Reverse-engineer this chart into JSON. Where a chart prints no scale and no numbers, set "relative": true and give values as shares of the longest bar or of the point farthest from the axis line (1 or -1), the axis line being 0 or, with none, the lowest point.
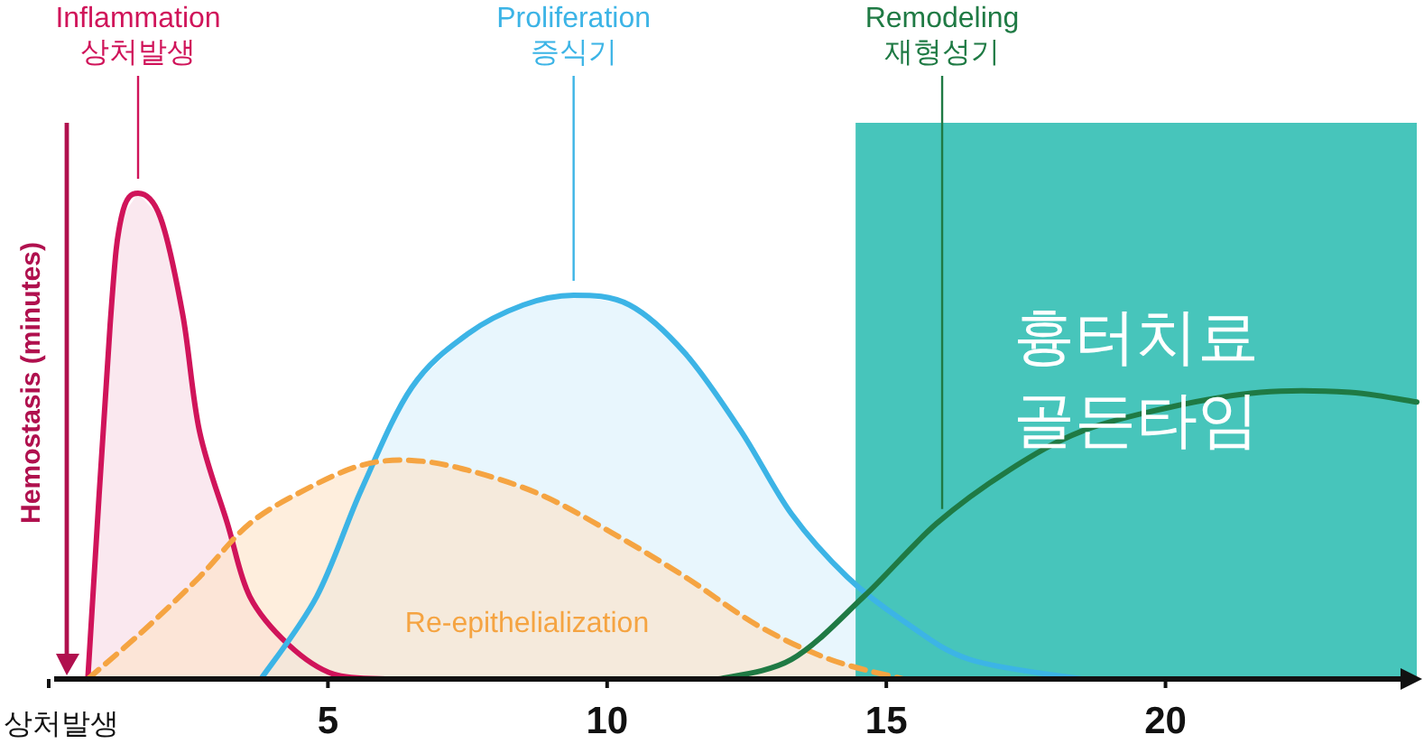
{
  "chart_data": {
    "type": "area",
    "relative": true,
    "ylabel": "Hemostasis (minutes)",
    "xlim": [
      0,
      24.5
    ],
    "xticks": [
      {
        "value": 0,
        "label": "상처발생"
      },
      5,
      10,
      15,
      20
    ],
    "series": [
      {
        "type": "area",
        "color": "#d0145a",
        "line_style": "solid",
        "x": [
          0.7,
          1.1,
          1.3,
          1.6,
          2.0,
          2.4,
          2.7,
          3.2,
          3.6,
          4.3,
          5.1,
          6.1
        ],
        "values": [
          0,
          0.73,
          0.95,
          1.0,
          0.95,
          0.75,
          0.51,
          0.32,
          0.17,
          0.07,
          0.01,
          0
        ]
      },
      {
        "type": "area",
        "color": "#3cb4e6",
        "line_style": "solid",
        "x": [
          3.8,
          4.8,
          5.6,
          6.5,
          7.5,
          8.5,
          9.4,
          10.4,
          11.4,
          12.4,
          13.3,
          14.3,
          15.3,
          16.5,
          18.5
        ],
        "values": [
          0,
          0.17,
          0.39,
          0.6,
          0.71,
          0.77,
          0.79,
          0.77,
          0.67,
          0.51,
          0.34,
          0.21,
          0.12,
          0.04,
          0
        ]
      },
      {
        "type": "area",
        "color": "#f5a442",
        "line_style": "dashed",
        "x": [
          0.7,
          1.7,
          2.7,
          3.6,
          4.6,
          5.6,
          6.5,
          7.5,
          8.8,
          10.1,
          11.4,
          12.7,
          14.0,
          15.3
        ],
        "values": [
          0,
          0.1,
          0.21,
          0.32,
          0.39,
          0.44,
          0.45,
          0.43,
          0.38,
          0.3,
          0.21,
          0.11,
          0.04,
          0
        ]
      },
      {
        "type": "line",
        "color": "#1f7a44",
        "line_style": "solid",
        "x": [
          12.0,
          13.3,
          14.6,
          15.9,
          17.2,
          18.5,
          20.1,
          21.7,
          23.3,
          24.5
        ],
        "values": [
          0,
          0.04,
          0.17,
          0.32,
          0.43,
          0.51,
          0.56,
          0.59,
          0.59,
          0.57
        ]
      }
    ],
    "bands": [
      {
        "axis": "x",
        "from": 14.45,
        "to": 24.5,
        "label": "흉터치료\n골든타임",
        "color": "#2ebdb2"
      }
    ],
    "annotations": [
      {
        "text": "Inflammation\n상처발생",
        "x": 1.6,
        "y": 1.0
      },
      {
        "text": "Proliferation\n증식기",
        "x": 9.4,
        "y": 0.79
      },
      "Re-epithelialization",
      {
        "text": "Remodeling\n재형성기",
        "x": 16,
        "y": 0.32
      }
    ]
  }
}
